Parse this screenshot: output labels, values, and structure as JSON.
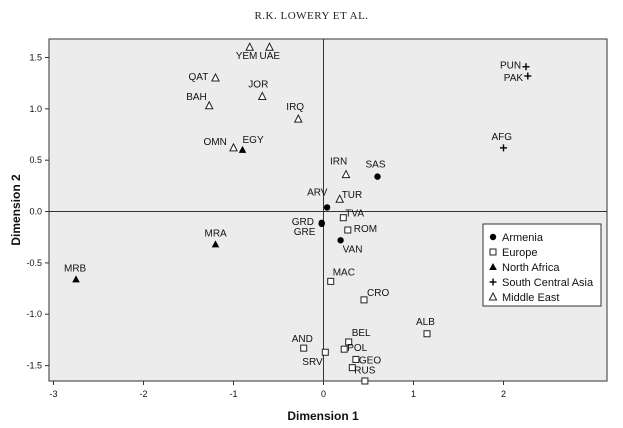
{
  "header": "R.K. LOWERY ET AL.",
  "chart_data": {
    "type": "scatter",
    "xlabel": "Dimension 1",
    "ylabel": "Dimension 2",
    "xlim": [
      -3.05,
      3.15
    ],
    "ylim": [
      -1.65,
      1.68
    ],
    "xticks": [
      -3,
      -2,
      -1,
      0,
      1,
      2
    ],
    "yticks": [
      1.5,
      1.0,
      0.5,
      0.0,
      -0.5,
      -1.0,
      -1.5
    ],
    "xtick_labels": [
      "-3",
      "-2",
      "-1",
      "0",
      "1",
      "2"
    ],
    "ytick_labels": [
      "1.5",
      "1.0",
      "0.5",
      "0.0",
      "-0.5",
      "-1.0",
      "-1.5"
    ],
    "reference_lines": {
      "x": 0,
      "y": 0
    },
    "legend_position": "right",
    "series": [
      {
        "name": "Armenia",
        "marker": "circle",
        "points": [
          {
            "label": "SAS",
            "x": 0.6,
            "y": 0.34
          },
          {
            "label": "ARV",
            "x": 0.04,
            "y": 0.04
          },
          {
            "label": "GRD",
            "x": -0.02,
            "y": -0.11
          },
          {
            "label": "GRE",
            "x": -0.02,
            "y": -0.12
          },
          {
            "label": "VAN",
            "x": 0.19,
            "y": -0.28
          }
        ]
      },
      {
        "name": "Europe",
        "marker": "square",
        "points": [
          {
            "label": "TVA",
            "x": 0.22,
            "y": -0.06
          },
          {
            "label": "ROM",
            "x": 0.27,
            "y": -0.18
          },
          {
            "label": "MAC",
            "x": 0.08,
            "y": -0.68
          },
          {
            "label": "CRO",
            "x": 0.45,
            "y": -0.86
          },
          {
            "label": "ALB",
            "x": 1.15,
            "y": -1.19
          },
          {
            "label": "AND",
            "x": -0.22,
            "y": -1.33
          },
          {
            "label": "SRV",
            "x": 0.02,
            "y": -1.37
          },
          {
            "label": "BEL",
            "x": 0.28,
            "y": -1.27
          },
          {
            "label": "POL",
            "x": 0.23,
            "y": -1.34
          },
          {
            "label": "GEO",
            "x": 0.36,
            "y": -1.44
          },
          {
            "label": "RUS",
            "x": 0.32,
            "y": -1.52
          },
          {
            "label": "",
            "x": 0.46,
            "y": -1.65
          }
        ]
      },
      {
        "name": "North Africa",
        "marker": "triangle",
        "points": [
          {
            "label": "EGY",
            "x": -0.9,
            "y": 0.6
          },
          {
            "label": "MRA",
            "x": -1.2,
            "y": -0.32
          },
          {
            "label": "MRB",
            "x": -2.75,
            "y": -0.66
          }
        ]
      },
      {
        "name": "South Central Asia",
        "marker": "plus",
        "points": [
          {
            "label": "PUN",
            "x": 2.25,
            "y": 1.41
          },
          {
            "label": "PAK",
            "x": 2.27,
            "y": 1.32
          },
          {
            "label": "AFG",
            "x": 2.0,
            "y": 0.62
          }
        ]
      },
      {
        "name": "Middle East",
        "marker": "open-triangle",
        "points": [
          {
            "label": "YEM",
            "x": -0.82,
            "y": 1.6
          },
          {
            "label": "UAE",
            "x": -0.6,
            "y": 1.6
          },
          {
            "label": "QAT",
            "x": -1.2,
            "y": 1.3
          },
          {
            "label": "JOR",
            "x": -0.68,
            "y": 1.12
          },
          {
            "label": "BAH",
            "x": -1.27,
            "y": 1.03
          },
          {
            "label": "IRQ",
            "x": -0.28,
            "y": 0.9
          },
          {
            "label": "OMN",
            "x": -1.0,
            "y": 0.62
          },
          {
            "label": "IRN",
            "x": 0.25,
            "y": 0.36
          },
          {
            "label": "TUR",
            "x": 0.18,
            "y": 0.12
          }
        ]
      }
    ]
  }
}
